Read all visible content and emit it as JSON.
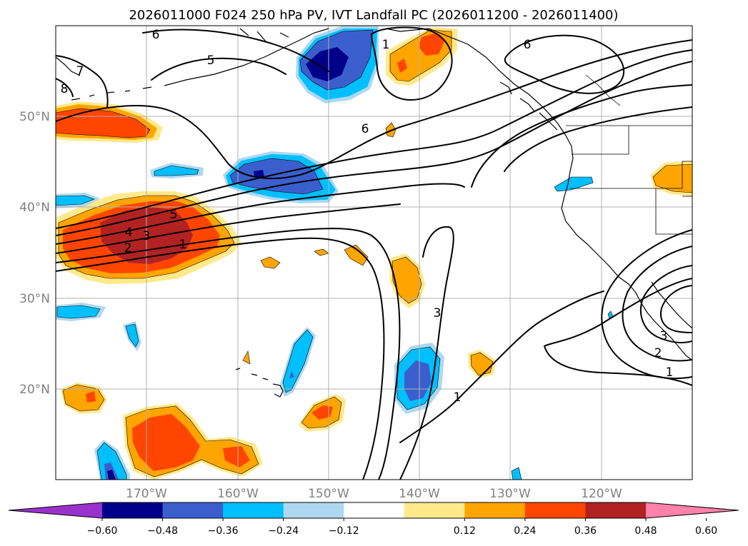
{
  "chart_data": {
    "type": "heatmap",
    "title": "2026011000 F024 250 hPa PV, IVT Landfall PC (2026011200 - 2026011400)",
    "lon_ticks": [
      {
        "lon": -170,
        "label": "170°W"
      },
      {
        "lon": -160,
        "label": "160°W"
      },
      {
        "lon": -150,
        "label": "150°W"
      },
      {
        "lon": -140,
        "label": "140°W"
      },
      {
        "lon": -130,
        "label": "130°W"
      },
      {
        "lon": -120,
        "label": "120°W"
      }
    ],
    "lat_ticks": [
      {
        "lat": 50,
        "label": "50°N"
      },
      {
        "lat": 40,
        "label": "40°N"
      },
      {
        "lat": 30,
        "label": "30°N"
      },
      {
        "lat": 20,
        "label": "20°N"
      }
    ],
    "lon_range": [
      -180,
      -110
    ],
    "lat_range": [
      10,
      60
    ],
    "grid": true,
    "colorbar": {
      "orientation": "horizontal",
      "placement": "bottom",
      "extend": "both",
      "ticks": [
        "−0.60",
        "−0.48",
        "−0.36",
        "−0.24",
        "−0.12",
        "0.12",
        "0.24",
        "0.36",
        "0.48",
        "0.60"
      ],
      "levels": [
        -0.6,
        -0.48,
        -0.36,
        -0.24,
        -0.12,
        0.12,
        0.24,
        0.36,
        0.48,
        0.6
      ],
      "colors": [
        "#9932cc",
        "#00008b",
        "#3a5fcd",
        "#00bfff",
        "#add8f0",
        "#ffffff",
        "#ffe98a",
        "#ffa500",
        "#ff4500",
        "#b22222",
        "#ff82ab"
      ]
    },
    "contour_labels": [
      "6",
      "5",
      "7",
      "8",
      "1",
      "6",
      "6",
      "5",
      "4",
      "3",
      "2",
      "1",
      "3",
      "1",
      "3",
      "2",
      "1"
    ]
  }
}
